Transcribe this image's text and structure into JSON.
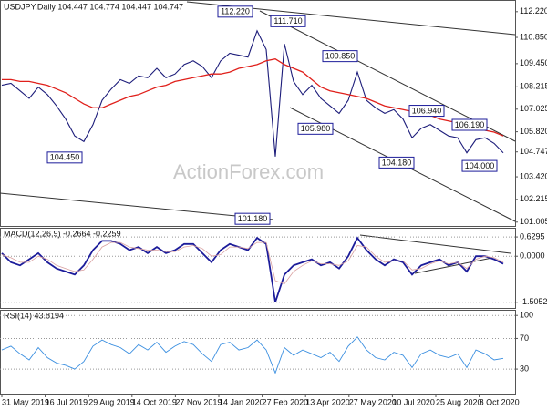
{
  "chart_data": [
    {
      "type": "line",
      "title": "USDJPY,Daily 104.447 104.774 104.447 104.747",
      "watermark": "ActionForex.com",
      "ylim": [
        100.8,
        112.6
      ],
      "yticks": [
        {
          "value": 112.22,
          "label": "112.220"
        },
        {
          "value": 110.85,
          "label": "110.850"
        },
        {
          "value": 109.45,
          "label": "109.450"
        },
        108.215,
        107.025,
        {
          "value": 105.82,
          "label": "105.820"
        },
        104.747,
        {
          "value": 103.42,
          "label": "103.420"
        },
        102.215,
        101.005
      ],
      "series": [
        {
          "color": "#1c1c7a",
          "values": [
            108.3,
            108.4,
            108.0,
            107.6,
            108.2,
            107.8,
            107.2,
            106.5,
            105.6,
            105.3,
            106.2,
            107.5,
            108.1,
            108.6,
            108.4,
            108.8,
            108.7,
            109.2,
            108.7,
            108.9,
            109.4,
            109.6,
            109.3,
            108.7,
            109.6,
            110.0,
            109.9,
            109.8,
            111.2,
            110.2,
            104.5,
            110.5,
            108.5,
            107.8,
            108.3,
            107.6,
            107.2,
            106.8,
            107.5,
            109.0,
            107.5,
            107.1,
            106.8,
            107.0,
            106.5,
            105.5,
            106.0,
            106.2,
            105.9,
            105.6,
            105.5,
            104.7,
            105.4,
            105.5,
            105.2,
            104.7
          ]
        },
        {
          "color": "#e0201b",
          "values": [
            108.6,
            108.6,
            108.5,
            108.5,
            108.4,
            108.3,
            108.1,
            107.9,
            107.6,
            107.3,
            107.1,
            107.1,
            107.3,
            107.5,
            107.7,
            107.8,
            108.0,
            108.2,
            108.3,
            108.5,
            108.6,
            108.7,
            108.8,
            108.9,
            108.9,
            109.0,
            109.2,
            109.3,
            109.4,
            109.6,
            109.7,
            109.4,
            109.2,
            109.0,
            108.6,
            108.2,
            108.0,
            107.9,
            107.8,
            107.7,
            107.6,
            107.4,
            107.2,
            107.1,
            107.0,
            106.9,
            106.8,
            106.7,
            106.5,
            106.4,
            106.3,
            106.1,
            106.0,
            105.9,
            105.8,
            105.6
          ]
        }
      ],
      "annotations": [
        {
          "label": "112.220",
          "value": 112.22
        },
        {
          "label": "111.710",
          "value": 111.71
        },
        {
          "label": "109.850",
          "value": 109.85
        },
        {
          "label": "106.940",
          "value": 106.94
        },
        {
          "label": "106.190",
          "value": 106.19
        },
        {
          "label": "105.980",
          "value": 105.98
        },
        {
          "label": "104.450",
          "value": 104.45
        },
        {
          "label": "104.180",
          "value": 104.18
        },
        {
          "label": "104.000",
          "value": 104.0
        },
        {
          "label": "101.180",
          "value": 101.18
        }
      ]
    },
    {
      "type": "line",
      "title": "MACD(12,26,9) -0.2664 -0.2259",
      "ylim": [
        -1.75,
        0.87
      ],
      "yticks": [
        0.6295,
        {
          "value": 0,
          "label": "0.0000"
        },
        -1.5052
      ],
      "series": [
        {
          "color": "#1c1c9a",
          "values": [
            0.1,
            -0.2,
            -0.3,
            -0.1,
            0.1,
            -0.2,
            -0.4,
            -0.5,
            -0.6,
            -0.3,
            0.2,
            0.5,
            0.5,
            0.4,
            0.2,
            0.3,
            0.1,
            0.3,
            0.1,
            0.2,
            0.4,
            0.4,
            0.1,
            -0.2,
            0.2,
            0.4,
            0.3,
            0.2,
            0.6,
            0.4,
            -1.5,
            -0.6,
            -0.3,
            -0.2,
            -0.1,
            -0.3,
            -0.2,
            -0.4,
            0.0,
            0.6,
            0.2,
            -0.1,
            -0.3,
            -0.1,
            -0.2,
            -0.6,
            -0.3,
            -0.2,
            -0.1,
            -0.3,
            -0.2,
            -0.5,
            0.0,
            0.0,
            -0.1,
            -0.25
          ]
        },
        {
          "color": "#d9a0a0",
          "values": [
            0.05,
            -0.05,
            -0.2,
            -0.2,
            0.0,
            -0.1,
            -0.3,
            -0.4,
            -0.5,
            -0.45,
            -0.1,
            0.3,
            0.45,
            0.45,
            0.3,
            0.25,
            0.2,
            0.2,
            0.15,
            0.15,
            0.3,
            0.35,
            0.25,
            0.0,
            0.05,
            0.3,
            0.3,
            0.25,
            0.45,
            0.45,
            -0.8,
            -0.9,
            -0.5,
            -0.3,
            -0.15,
            -0.25,
            -0.25,
            -0.3,
            -0.15,
            0.35,
            0.3,
            0.0,
            -0.2,
            -0.15,
            -0.15,
            -0.45,
            -0.4,
            -0.25,
            -0.15,
            -0.25,
            -0.2,
            -0.4,
            -0.1,
            0.0,
            -0.05,
            -0.2
          ]
        }
      ]
    },
    {
      "type": "line",
      "title": "RSI(14) 43.8194",
      "ylim": [
        -2,
        105
      ],
      "yticks": [
        100,
        70,
        30
      ],
      "series": [
        {
          "color": "#3b8fe0",
          "values": [
            55,
            60,
            50,
            42,
            58,
            45,
            38,
            35,
            30,
            40,
            60,
            68,
            62,
            58,
            50,
            62,
            55,
            65,
            52,
            60,
            66,
            62,
            50,
            40,
            62,
            65,
            55,
            58,
            68,
            55,
            25,
            58,
            48,
            55,
            50,
            45,
            52,
            40,
            60,
            72,
            55,
            45,
            42,
            52,
            48,
            32,
            50,
            55,
            48,
            45,
            50,
            32,
            55,
            50,
            42,
            44
          ]
        }
      ],
      "x_labels": [
        "31 May 2019",
        "16 Jul 2019",
        "29 Aug 2019",
        "14 Oct 2019",
        "27 Nov 2019",
        "14 Jan 2020",
        "27 Feb 2020",
        "13 Apr 2020",
        "27 May 2020",
        "10 Jul 2020",
        "25 Aug 2020",
        "8 Oct 2020"
      ]
    }
  ]
}
